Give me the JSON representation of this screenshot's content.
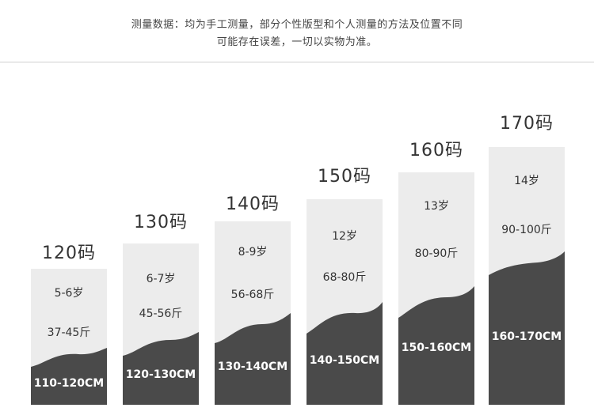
{
  "note": {
    "line1": "测量数据：均为手工测量，部分个性版型和个人测量的方法及位置不同",
    "line2": "可能存在误差，一切以实物为准。"
  },
  "sizes": [
    {
      "size": "120码",
      "age": "5-6岁",
      "weight": "37-45斤",
      "height": "110-120CM"
    },
    {
      "size": "130码",
      "age": "6-7岁",
      "weight": "45-56斤",
      "height": "120-130CM"
    },
    {
      "size": "140码",
      "age": "8-9岁",
      "weight": "56-68斤",
      "height": "130-140CM"
    },
    {
      "size": "150码",
      "age": "12岁",
      "weight": "68-80斤",
      "height": "140-150CM"
    },
    {
      "size": "160码",
      "age": "13岁",
      "weight": "80-90斤",
      "height": "150-160CM"
    },
    {
      "size": "170码",
      "age": "14岁",
      "weight": "90-100斤",
      "height": "160-170CM"
    }
  ],
  "colors": {
    "card_light": "#ececec",
    "card_dark": "#4a4a4a"
  }
}
